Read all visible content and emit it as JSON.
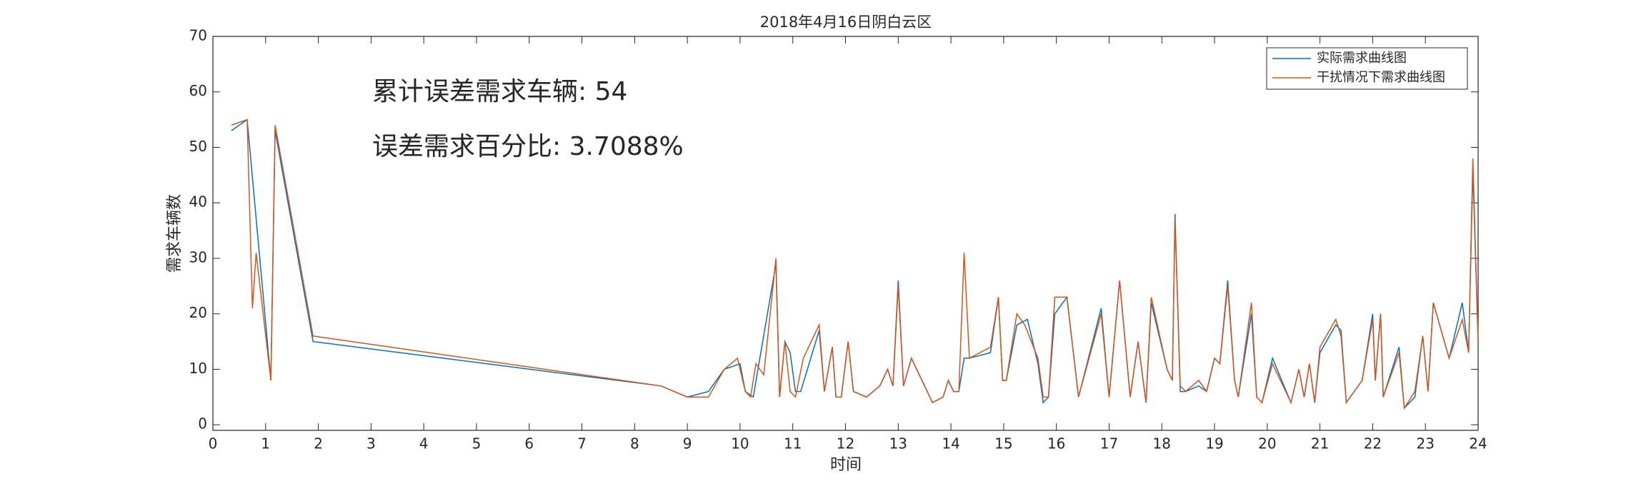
{
  "chart_data": {
    "type": "line",
    "title": "2018年4月16日阴白云区",
    "x_label": "时间",
    "y_label": "需求车辆数",
    "annotations": [
      "累计误差需求车辆: 54",
      "误差需求百分比: 3.7088%"
    ],
    "xlim": [
      0,
      24
    ],
    "ylim": [
      -1,
      70
    ],
    "xticks": [
      0,
      1,
      2,
      3,
      4,
      5,
      6,
      7,
      8,
      9,
      10,
      11,
      12,
      13,
      14,
      15,
      16,
      17,
      18,
      19,
      20,
      21,
      22,
      23,
      24
    ],
    "yticks": [
      0,
      10,
      20,
      30,
      40,
      50,
      60,
      70
    ],
    "grid": false,
    "legend": "top-right",
    "series": [
      {
        "name": "实际需求曲线图",
        "color": "#0072BD",
        "x": [
          0.35,
          0.65,
          1.1,
          1.18,
          1.9,
          8.5,
          9.0,
          9.4,
          9.7,
          10.0,
          10.1,
          10.25,
          10.68,
          10.75,
          10.85,
          10.95,
          11.05,
          11.15,
          11.5,
          11.6,
          11.75,
          11.82,
          11.92,
          12.05,
          12.15,
          12.4,
          12.65,
          12.8,
          12.9,
          13.0,
          13.1,
          13.25,
          13.65,
          13.85,
          13.95,
          14.05,
          14.15,
          14.25,
          14.35,
          14.75,
          14.9,
          14.98,
          15.05,
          15.25,
          15.45,
          15.65,
          15.75,
          15.85,
          15.97,
          16.2,
          16.42,
          16.85,
          17.0,
          17.2,
          17.4,
          17.55,
          17.7,
          17.8,
          18.1,
          18.2,
          18.25,
          18.35,
          18.45,
          18.7,
          18.85,
          19.0,
          19.1,
          19.25,
          19.38,
          19.45,
          19.7,
          19.8,
          19.9,
          20.1,
          20.45,
          20.6,
          20.7,
          20.8,
          20.9,
          21.0,
          21.3,
          21.4,
          21.5,
          21.8,
          22.0,
          22.05,
          22.15,
          22.2,
          22.5,
          22.6,
          22.8,
          22.95,
          23.05,
          23.15,
          23.45,
          23.7,
          23.82,
          23.9,
          24.0
        ],
        "values": [
          53,
          55,
          8,
          53,
          15,
          7,
          5,
          6,
          10,
          11,
          6,
          5,
          29,
          5,
          15,
          13,
          6,
          6,
          17,
          6,
          14,
          5,
          5,
          15,
          6,
          5,
          7,
          10,
          7,
          26,
          7,
          12,
          4,
          5,
          8,
          6,
          6,
          12,
          12,
          13,
          23,
          8,
          8,
          18,
          19,
          11,
          4,
          5,
          20,
          23,
          5,
          21,
          5,
          26,
          5,
          15,
          4,
          22,
          10,
          8,
          38,
          6,
          6,
          7,
          6,
          12,
          11,
          26,
          8,
          5,
          20,
          5,
          4,
          12,
          4,
          10,
          5,
          11,
          4,
          13,
          18,
          17,
          4,
          8,
          20,
          8,
          20,
          5,
          14,
          3,
          5,
          16,
          6,
          22,
          12,
          22,
          13,
          46,
          15
        ]
      },
      {
        "name": "干扰情况下需求曲线图",
        "color": "#D95319",
        "x": [
          0.35,
          0.65,
          0.75,
          0.82,
          1.1,
          1.18,
          1.9,
          8.5,
          9.0,
          9.4,
          9.7,
          9.95,
          10.1,
          10.2,
          10.3,
          10.45,
          10.68,
          10.75,
          10.85,
          10.95,
          11.05,
          11.2,
          11.5,
          11.6,
          11.75,
          11.82,
          11.92,
          12.05,
          12.15,
          12.4,
          12.65,
          12.8,
          12.9,
          13.0,
          13.1,
          13.25,
          13.65,
          13.85,
          13.95,
          14.05,
          14.15,
          14.25,
          14.35,
          14.75,
          14.9,
          14.98,
          15.05,
          15.25,
          15.4,
          15.65,
          15.75,
          15.85,
          15.97,
          16.2,
          16.42,
          16.85,
          17.0,
          17.2,
          17.4,
          17.55,
          17.7,
          17.8,
          18.1,
          18.2,
          18.25,
          18.35,
          18.45,
          18.7,
          18.85,
          19.0,
          19.1,
          19.25,
          19.38,
          19.45,
          19.7,
          19.8,
          19.9,
          20.1,
          20.45,
          20.6,
          20.7,
          20.8,
          20.9,
          21.0,
          21.3,
          21.4,
          21.5,
          21.8,
          22.0,
          22.05,
          22.15,
          22.2,
          22.5,
          22.6,
          22.8,
          22.95,
          23.05,
          23.15,
          23.45,
          23.7,
          23.82,
          23.9,
          24.0
        ],
        "values": [
          54,
          55,
          21,
          31,
          8,
          54,
          16,
          7,
          5,
          5,
          10,
          12,
          6,
          5,
          11,
          9,
          30,
          5,
          15,
          6,
          5,
          12,
          18,
          6,
          14,
          5,
          5,
          15,
          6,
          5,
          7,
          10,
          7,
          25,
          7,
          12,
          4,
          5,
          8,
          6,
          6,
          31,
          12,
          14,
          23,
          8,
          8,
          20,
          18,
          12,
          5,
          5,
          23,
          23,
          5,
          20,
          5,
          26,
          5,
          15,
          4,
          23,
          10,
          8,
          37,
          7,
          6,
          8,
          6,
          12,
          11,
          25,
          8,
          5,
          22,
          5,
          4,
          11,
          4,
          10,
          5,
          11,
          4,
          14,
          19,
          16,
          4,
          8,
          19,
          8,
          20,
          5,
          13,
          3,
          6,
          16,
          6,
          22,
          12,
          19,
          13,
          48,
          15
        ]
      }
    ]
  }
}
